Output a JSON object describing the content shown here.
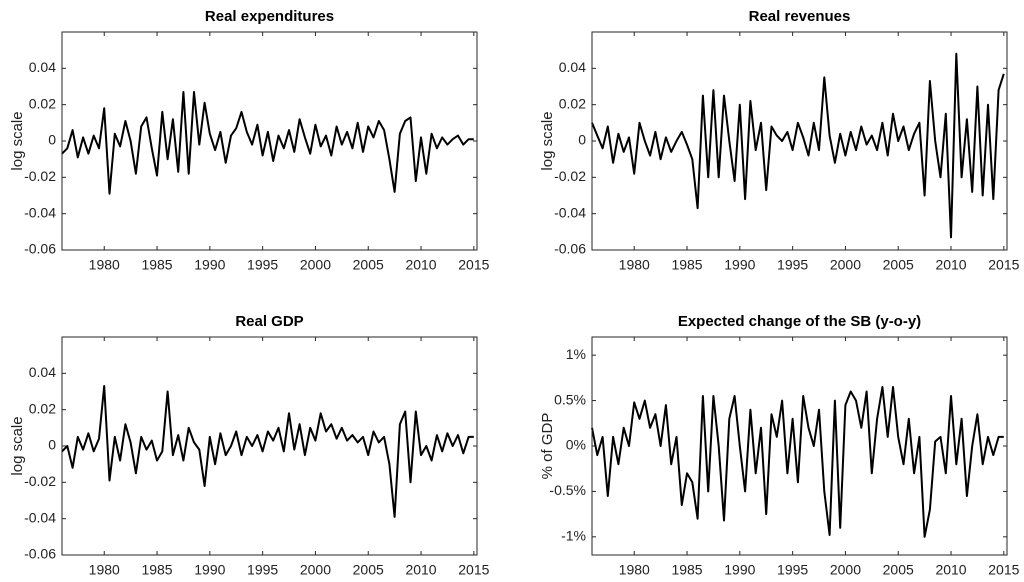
{
  "chart_data": [
    {
      "type": "line",
      "title": "Real expenditures",
      "ylabel": "log scale",
      "color": "#000000",
      "x": [
        1976,
        1976.5,
        1977,
        1977.5,
        1978,
        1978.5,
        1979,
        1979.5,
        1980,
        1980.5,
        1981,
        1981.5,
        1982,
        1982.5,
        1983,
        1983.5,
        1984,
        1984.5,
        1985,
        1985.5,
        1986,
        1986.5,
        1987,
        1987.5,
        1988,
        1988.5,
        1989,
        1989.5,
        1990,
        1990.5,
        1991,
        1991.5,
        1992,
        1992.5,
        1993,
        1993.5,
        1994,
        1994.5,
        1995,
        1995.5,
        1996,
        1996.5,
        1997,
        1997.5,
        1998,
        1998.5,
        1999,
        1999.5,
        2000,
        2000.5,
        2001,
        2001.5,
        2002,
        2002.5,
        2003,
        2003.5,
        2004,
        2004.5,
        2005,
        2005.5,
        2006,
        2006.5,
        2007,
        2007.5,
        2008,
        2008.5,
        2009,
        2009.5,
        2010,
        2010.5,
        2011,
        2011.5,
        2012,
        2012.5,
        2013,
        2013.5,
        2014,
        2014.5,
        2015
      ],
      "values": [
        -0.007,
        -0.004,
        0.006,
        -0.009,
        0.002,
        -0.007,
        0.003,
        -0.004,
        0.018,
        -0.029,
        0.004,
        -0.003,
        0.011,
        0.0,
        -0.018,
        0.008,
        0.013,
        -0.004,
        -0.019,
        0.016,
        -0.01,
        0.012,
        -0.017,
        0.027,
        -0.018,
        0.027,
        -0.002,
        0.021,
        0.004,
        -0.005,
        0.005,
        -0.012,
        0.003,
        0.007,
        0.016,
        0.005,
        -0.002,
        0.009,
        -0.008,
        0.005,
        -0.011,
        0.003,
        -0.004,
        0.006,
        -0.006,
        0.012,
        0.002,
        -0.007,
        0.009,
        -0.003,
        0.003,
        -0.008,
        0.008,
        -0.002,
        0.005,
        -0.004,
        0.01,
        -0.006,
        0.008,
        0.002,
        0.011,
        0.006,
        -0.01,
        -0.028,
        0.004,
        0.011,
        0.013,
        -0.022,
        0.002,
        -0.018,
        0.004,
        -0.004,
        0.002,
        -0.002,
        0.001,
        0.003,
        -0.002,
        0.001,
        0.001
      ],
      "xlim": [
        1976,
        2015.3
      ],
      "xticks": [
        1980,
        1985,
        1990,
        1995,
        2000,
        2005,
        2010,
        2015
      ],
      "ylim": [
        -0.06,
        0.06
      ],
      "yticks": [
        -0.06,
        -0.04,
        -0.02,
        0,
        0.02,
        0.04
      ]
    },
    {
      "type": "line",
      "title": "Real revenues",
      "ylabel": "log scale",
      "color": "#000000",
      "x": [
        1976,
        1976.5,
        1977,
        1977.5,
        1978,
        1978.5,
        1979,
        1979.5,
        1980,
        1980.5,
        1981,
        1981.5,
        1982,
        1982.5,
        1983,
        1983.5,
        1984,
        1984.5,
        1985,
        1985.5,
        1986,
        1986.5,
        1987,
        1987.5,
        1988,
        1988.5,
        1989,
        1989.5,
        1990,
        1990.5,
        1991,
        1991.5,
        1992,
        1992.5,
        1993,
        1993.5,
        1994,
        1994.5,
        1995,
        1995.5,
        1996,
        1996.5,
        1997,
        1997.5,
        1998,
        1998.5,
        1999,
        1999.5,
        2000,
        2000.5,
        2001,
        2001.5,
        2002,
        2002.5,
        2003,
        2003.5,
        2004,
        2004.5,
        2005,
        2005.5,
        2006,
        2006.5,
        2007,
        2007.5,
        2008,
        2008.5,
        2009,
        2009.5,
        2010,
        2010.5,
        2011,
        2011.5,
        2012,
        2012.5,
        2013,
        2013.5,
        2014,
        2014.5,
        2015
      ],
      "values": [
        0.01,
        0.003,
        -0.004,
        0.008,
        -0.012,
        0.004,
        -0.006,
        0.002,
        -0.018,
        0.01,
        0.0,
        -0.008,
        0.005,
        -0.01,
        0.002,
        -0.006,
        0.0,
        0.005,
        -0.002,
        -0.01,
        -0.037,
        0.025,
        -0.02,
        0.028,
        -0.02,
        0.025,
        0.0,
        -0.022,
        0.02,
        -0.032,
        0.022,
        -0.005,
        0.01,
        -0.027,
        0.008,
        0.003,
        0.0,
        0.005,
        -0.005,
        0.01,
        0.002,
        -0.008,
        0.01,
        -0.005,
        0.035,
        0.003,
        -0.012,
        0.004,
        -0.008,
        0.005,
        -0.005,
        0.008,
        -0.002,
        0.003,
        -0.005,
        0.01,
        -0.008,
        0.015,
        0.0,
        0.008,
        -0.005,
        0.004,
        0.01,
        -0.03,
        0.033,
        0.0,
        -0.02,
        0.015,
        -0.053,
        0.048,
        -0.02,
        0.012,
        -0.028,
        0.03,
        -0.03,
        0.02,
        -0.032,
        0.028,
        0.037
      ],
      "xlim": [
        1976,
        2015.3
      ],
      "xticks": [
        1980,
        1985,
        1990,
        1995,
        2000,
        2005,
        2010,
        2015
      ],
      "ylim": [
        -0.06,
        0.06
      ],
      "yticks": [
        -0.06,
        -0.04,
        -0.02,
        0,
        0.02,
        0.04
      ]
    },
    {
      "type": "line",
      "title": "Real GDP",
      "ylabel": "log scale",
      "color": "#000000",
      "x": [
        1976,
        1976.5,
        1977,
        1977.5,
        1978,
        1978.5,
        1979,
        1979.5,
        1980,
        1980.5,
        1981,
        1981.5,
        1982,
        1982.5,
        1983,
        1983.5,
        1984,
        1984.5,
        1985,
        1985.5,
        1986,
        1986.5,
        1987,
        1987.5,
        1988,
        1988.5,
        1989,
        1989.5,
        1990,
        1990.5,
        1991,
        1991.5,
        1992,
        1992.5,
        1993,
        1993.5,
        1994,
        1994.5,
        1995,
        1995.5,
        1996,
        1996.5,
        1997,
        1997.5,
        1998,
        1998.5,
        1999,
        1999.5,
        2000,
        2000.5,
        2001,
        2001.5,
        2002,
        2002.5,
        2003,
        2003.5,
        2004,
        2004.5,
        2005,
        2005.5,
        2006,
        2006.5,
        2007,
        2007.5,
        2008,
        2008.5,
        2009,
        2009.5,
        2010,
        2010.5,
        2011,
        2011.5,
        2012,
        2012.5,
        2013,
        2013.5,
        2014,
        2014.5,
        2015
      ],
      "values": [
        -0.003,
        0.0,
        -0.012,
        0.005,
        -0.002,
        0.007,
        -0.003,
        0.004,
        0.033,
        -0.019,
        0.005,
        -0.008,
        0.012,
        0.002,
        -0.015,
        0.005,
        -0.002,
        0.003,
        -0.008,
        -0.003,
        0.03,
        -0.005,
        0.006,
        -0.008,
        0.01,
        0.002,
        -0.002,
        -0.022,
        0.005,
        -0.01,
        0.007,
        -0.005,
        0.0,
        0.008,
        -0.005,
        0.005,
        0.0,
        0.006,
        -0.003,
        0.008,
        0.003,
        0.01,
        -0.003,
        0.018,
        -0.002,
        0.012,
        -0.005,
        0.01,
        0.003,
        0.018,
        0.008,
        0.012,
        0.004,
        0.01,
        0.003,
        0.006,
        0.002,
        0.005,
        -0.005,
        0.008,
        0.002,
        0.005,
        -0.01,
        -0.039,
        0.012,
        0.019,
        -0.02,
        0.019,
        -0.005,
        0.0,
        -0.008,
        0.006,
        -0.003,
        0.007,
        0.0,
        0.006,
        -0.004,
        0.005,
        0.005
      ],
      "xlim": [
        1976,
        2015.3
      ],
      "xticks": [
        1980,
        1985,
        1990,
        1995,
        2000,
        2005,
        2010,
        2015
      ],
      "ylim": [
        -0.06,
        0.06
      ],
      "yticks": [
        -0.06,
        -0.04,
        -0.02,
        0,
        0.02,
        0.04
      ]
    },
    {
      "type": "line",
      "title": "Expected change of the SB (y-o-y)",
      "ylabel": "% of GDP",
      "color": "#000000",
      "x": [
        1976,
        1976.5,
        1977,
        1977.5,
        1978,
        1978.5,
        1979,
        1979.5,
        1980,
        1980.5,
        1981,
        1981.5,
        1982,
        1982.5,
        1983,
        1983.5,
        1984,
        1984.5,
        1985,
        1985.5,
        1986,
        1986.5,
        1987,
        1987.5,
        1988,
        1988.5,
        1989,
        1989.5,
        1990,
        1990.5,
        1991,
        1991.5,
        1992,
        1992.5,
        1993,
        1993.5,
        1994,
        1994.5,
        1995,
        1995.5,
        1996,
        1996.5,
        1997,
        1997.5,
        1998,
        1998.5,
        1999,
        1999.5,
        2000,
        2000.5,
        2001,
        2001.5,
        2002,
        2002.5,
        2003,
        2003.5,
        2004,
        2004.5,
        2005,
        2005.5,
        2006,
        2006.5,
        2007,
        2007.5,
        2008,
        2008.5,
        2009,
        2009.5,
        2010,
        2010.5,
        2011,
        2011.5,
        2012,
        2012.5,
        2013,
        2013.5,
        2014,
        2014.5,
        2015
      ],
      "values": [
        0.2,
        -0.1,
        0.1,
        -0.55,
        0.1,
        -0.2,
        0.2,
        0.0,
        0.48,
        0.3,
        0.5,
        0.2,
        0.35,
        0.0,
        0.45,
        -0.2,
        0.1,
        -0.65,
        -0.3,
        -0.4,
        -0.8,
        0.55,
        -0.5,
        0.55,
        0.0,
        -0.82,
        0.3,
        0.55,
        0.0,
        -0.5,
        0.4,
        -0.3,
        0.2,
        -0.75,
        0.35,
        0.1,
        0.5,
        -0.3,
        0.3,
        -0.4,
        0.55,
        0.2,
        0.0,
        0.4,
        -0.5,
        -0.98,
        0.5,
        -0.9,
        0.45,
        0.6,
        0.5,
        0.2,
        0.6,
        -0.3,
        0.3,
        0.65,
        0.1,
        0.65,
        0.1,
        -0.2,
        0.3,
        -0.3,
        0.1,
        -1.0,
        -0.7,
        0.05,
        0.1,
        -0.3,
        0.55,
        -0.2,
        0.3,
        -0.55,
        0.0,
        0.35,
        -0.2,
        0.1,
        -0.1,
        0.1,
        0.1
      ],
      "xlim": [
        1976,
        2015.3
      ],
      "xticks": [
        1980,
        1985,
        1990,
        1995,
        2000,
        2005,
        2010,
        2015
      ],
      "ylim": [
        -1.2,
        1.2
      ],
      "yticks": [
        {
          "value": -1,
          "label": "-1%"
        },
        {
          "value": -0.5,
          "label": "-0.5%"
        },
        {
          "value": 0,
          "label": "0%"
        },
        {
          "value": 0.5,
          "label": "0.5%"
        },
        {
          "value": 1,
          "label": "1%"
        }
      ]
    }
  ]
}
